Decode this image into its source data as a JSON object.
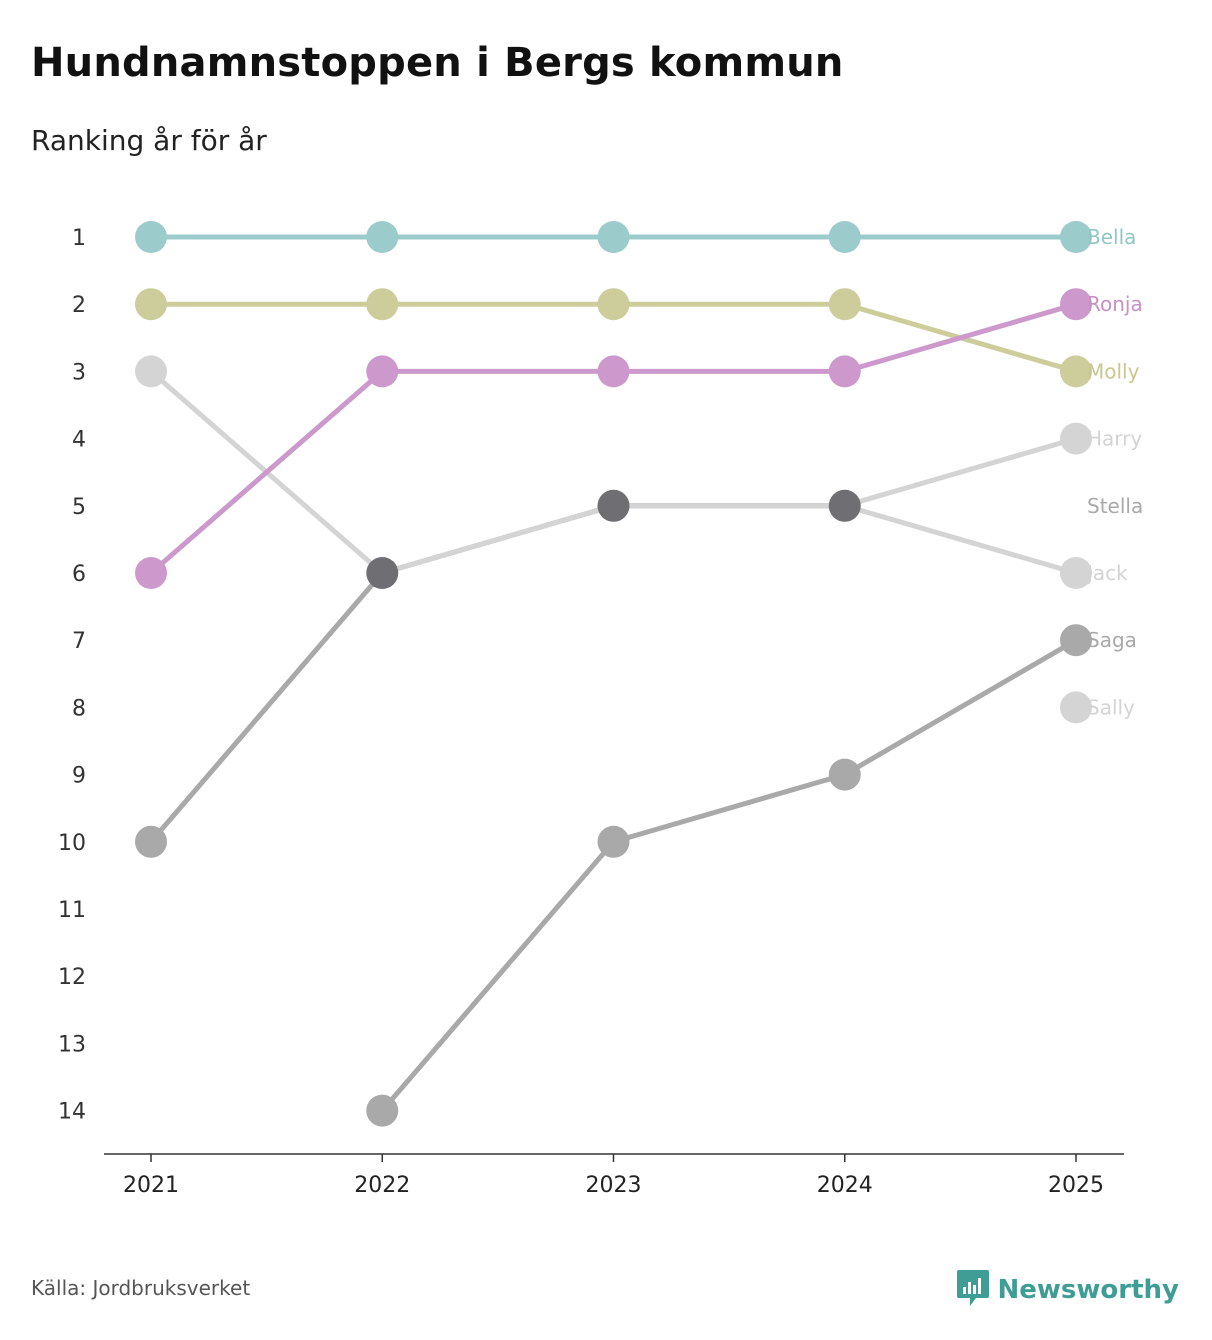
{
  "title": "Hundnamnstoppen i Bergs kommun",
  "subtitle": "Ranking år för år",
  "source": "Källa: Jordbruksverket",
  "brand": {
    "name": "Newsworthy",
    "icon": "newsworthy-logo-icon",
    "color": "#3f9d96"
  },
  "chart_data": {
    "type": "line",
    "title": "Hundnamnstoppen i Bergs kommun",
    "subtitle": "Ranking år för år",
    "xlabel": "",
    "ylabel": "",
    "x": [
      "2021",
      "2022",
      "2023",
      "2024",
      "2025"
    ],
    "ylim": [
      1,
      14
    ],
    "y_inverted": true,
    "yticks": [
      "1",
      "2",
      "3",
      "4",
      "5",
      "6",
      "7",
      "8",
      "9",
      "10",
      "11",
      "12",
      "13",
      "14"
    ],
    "legend": "labels at line end (right)",
    "series": [
      {
        "name": "Jack",
        "color": "#d4d4d4",
        "label_color": "#d4d4d4",
        "values": [
          3,
          6,
          5,
          5,
          6
        ]
      },
      {
        "name": "Sally",
        "color": "#d4d4d4",
        "label_color": "#d4d4d4",
        "values": [
          null,
          null,
          null,
          null,
          8
        ]
      },
      {
        "name": "Stella",
        "color": "#a9a9a9",
        "label_color": "#a9a9a9",
        "values": [
          10,
          6,
          5,
          5,
          null
        ]
      },
      {
        "name": "Harry",
        "color": "#d4d4d4",
        "label_color": "#d4d4d4",
        "values": [
          null,
          6,
          5,
          5,
          4
        ]
      },
      {
        "name": "Saga",
        "color": "#a9a9a9",
        "label_color": "#a9a9a9",
        "values": [
          null,
          14,
          10,
          9,
          7
        ]
      },
      {
        "name": "Molly",
        "color": "#cdcd9c",
        "label_color": "#c9c68f",
        "values": [
          2,
          2,
          2,
          2,
          3
        ]
      },
      {
        "name": "Ronja",
        "color": "#cd99cc",
        "label_color": "#c98fc8",
        "values": [
          6,
          3,
          3,
          3,
          2
        ]
      },
      {
        "name": "Bella",
        "color": "#9bcbcb",
        "label_color": "#8fc6c6",
        "values": [
          1,
          1,
          1,
          1,
          1
        ]
      }
    ],
    "overlap_marker_color": "#6e6e73"
  }
}
